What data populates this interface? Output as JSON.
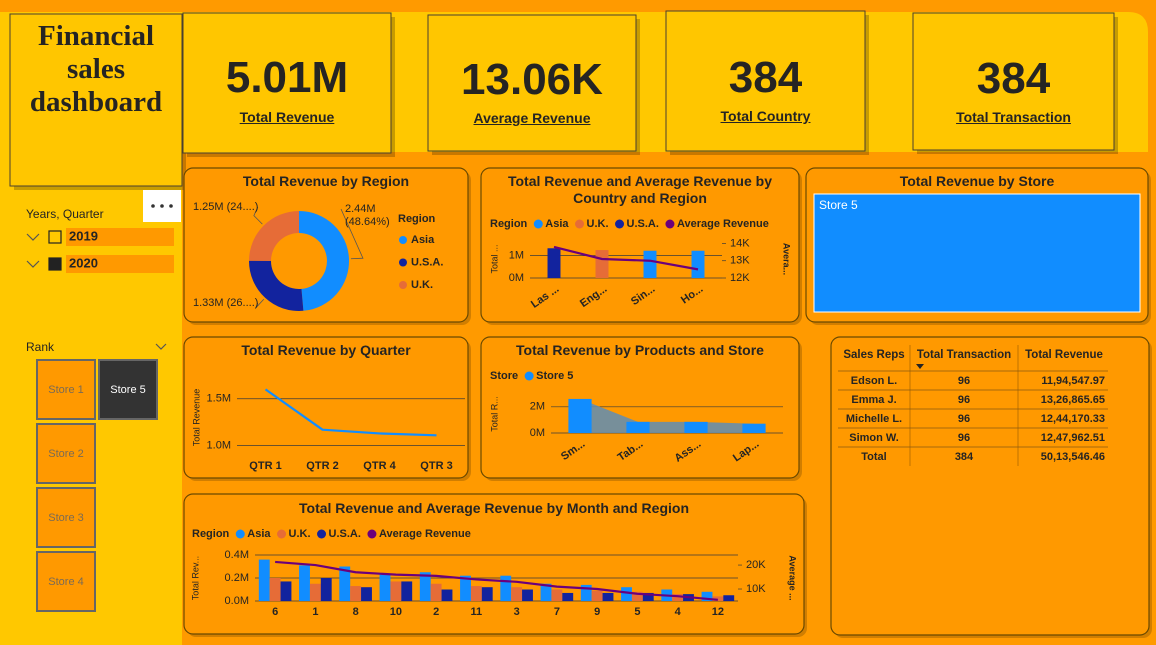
{
  "header": {
    "title": "Financial sales dashboard"
  },
  "kpis": [
    {
      "value": "5.01M",
      "label": "Total Revenue"
    },
    {
      "value": "13.06K",
      "label": "Average Revenue"
    },
    {
      "value": "384",
      "label": "Total Country"
    },
    {
      "value": "384",
      "label": "Total Transaction"
    }
  ],
  "slicers": {
    "year": {
      "title": "Years, Quarter",
      "items": [
        "2019",
        "2020"
      ],
      "checked": [
        false,
        true
      ]
    },
    "rank": {
      "title": "Rank",
      "items": [
        "Store 1",
        "Store 5",
        "Store 2",
        "Store 3",
        "Store 4"
      ],
      "selected_index": 1
    }
  },
  "chart_data": [
    {
      "type": "pie",
      "title": "Total Revenue by Region",
      "legend_title": "Region",
      "categories": [
        "Asia",
        "U.S.A.",
        "U.K."
      ],
      "values": [
        2.44,
        1.33,
        1.25
      ],
      "value_labels": [
        "2.44M (48.64%)",
        "1.33M (26....)",
        "1.25M (24....)"
      ],
      "colors": [
        "#118DFF",
        "#12239E",
        "#E66C37"
      ]
    },
    {
      "type": "combo",
      "title": "Total Revenue and Average Revenue by Country and Region",
      "legend_title": "Region",
      "categories": [
        "Las ...",
        "Eng...",
        "Sin...",
        "Ho..."
      ],
      "series": [
        {
          "name": "Asia",
          "color": "#118DFF",
          "values": [
            null,
            null,
            1.22,
            1.22
          ]
        },
        {
          "name": "U.K.",
          "color": "#E66C37",
          "values": [
            null,
            1.25,
            null,
            null
          ]
        },
        {
          "name": "U.S.A.",
          "color": "#12239E",
          "values": [
            1.33,
            null,
            null,
            null
          ]
        },
        {
          "name": "Average Revenue",
          "color": "#6B007B",
          "type": "line",
          "axis": "y2",
          "values": [
            13.8,
            13.1,
            13.0,
            12.5
          ]
        }
      ],
      "ylim": [
        0,
        1.7
      ],
      "yticks": [
        {
          "value": 0,
          "label": "0M"
        },
        {
          "value": 1,
          "label": "1M"
        }
      ],
      "y2lim": [
        12,
        14.2
      ],
      "y2ticks": [
        {
          "value": 12,
          "label": "12K"
        },
        {
          "value": 13,
          "label": "13K"
        },
        {
          "value": 14,
          "label": "14K"
        }
      ],
      "y_label": "Total ...",
      "y2_label": "Avera...",
      "grid": true
    },
    {
      "type": "treemap",
      "title": "Total Revenue by Store",
      "categories": [
        "Store 5"
      ],
      "values": [
        5.01
      ],
      "colors": [
        "#118DFF"
      ]
    },
    {
      "type": "line",
      "title": "Total Revenue by Quarter",
      "categories": [
        "QTR 1",
        "QTR 2",
        "QTR 4",
        "QTR 3"
      ],
      "values": [
        1.6,
        1.17,
        1.13,
        1.11
      ],
      "color": "#118DFF",
      "ylim": [
        0.9,
        1.7
      ],
      "yticks": [
        {
          "value": 1.0,
          "label": "1.0M"
        },
        {
          "value": 1.5,
          "label": "1.5M"
        }
      ],
      "y_label": "Total Revenue",
      "grid": true
    },
    {
      "type": "ribbon",
      "title": "Total Revenue by Products and Store",
      "legend_title": "Store",
      "categories": [
        "Sm...",
        "Tab...",
        "Ass...",
        "Lap..."
      ],
      "series": [
        {
          "name": "Store 5",
          "color": "#118DFF",
          "values": [
            2.6,
            0.85,
            0.85,
            0.71
          ]
        }
      ],
      "ribbon_color": "#5F8DB5",
      "ylim": [
        0,
        2.9
      ],
      "yticks": [
        {
          "value": 0,
          "label": "0M"
        },
        {
          "value": 2,
          "label": "2M"
        }
      ],
      "y_label": "Total R...",
      "grid": true
    },
    {
      "type": "combo",
      "title": "Total Revenue and Average Revenue by Month and Region",
      "legend_title": "Region",
      "categories": [
        "6",
        "1",
        "8",
        "10",
        "2",
        "11",
        "3",
        "7",
        "9",
        "5",
        "4",
        "12"
      ],
      "series": [
        {
          "name": "Asia",
          "color": "#118DFF",
          "values": [
            0.36,
            0.31,
            0.3,
            0.23,
            0.25,
            0.22,
            0.22,
            0.15,
            0.14,
            0.12,
            0.1,
            0.08
          ]
        },
        {
          "name": "U.K.",
          "color": "#E66C37",
          "values": [
            0.2,
            0.15,
            0.13,
            0.17,
            0.15,
            0.13,
            0.12,
            0.1,
            0.09,
            0.08,
            0.06,
            0.04
          ]
        },
        {
          "name": "U.S.A.",
          "color": "#12239E",
          "values": [
            0.17,
            0.2,
            0.12,
            0.17,
            0.1,
            0.12,
            0.1,
            0.07,
            0.07,
            0.07,
            0.06,
            0.05
          ]
        },
        {
          "name": "Average Revenue",
          "color": "#6B007B",
          "type": "line",
          "axis": "y2",
          "values": [
            21.3,
            20,
            17,
            16,
            15.5,
            14,
            13,
            11,
            10,
            8,
            7,
            5.5
          ]
        }
      ],
      "ylim": [
        0,
        0.4
      ],
      "yticks": [
        {
          "value": 0,
          "label": "0.0M"
        },
        {
          "value": 0.2,
          "label": "0.2M"
        },
        {
          "value": 0.4,
          "label": "0.4M"
        }
      ],
      "y2lim": [
        5,
        24.2
      ],
      "y2ticks": [
        {
          "value": 10,
          "label": "10K"
        },
        {
          "value": 20,
          "label": "20K"
        }
      ],
      "y_label": "Total Rev...",
      "y2_label": "Average ...",
      "grid": true
    }
  ],
  "table": {
    "columns": [
      "Sales Reps",
      "Total Transaction",
      "Total Revenue"
    ],
    "rows": [
      [
        "Edson L.",
        "96",
        "11,94,547.97"
      ],
      [
        "Emma J.",
        "96",
        "13,26,865.65"
      ],
      [
        "Michelle L.",
        "96",
        "12,44,170.33"
      ],
      [
        "Simon W.",
        "96",
        "12,47,962.51"
      ]
    ],
    "total": [
      "Total",
      "384",
      "50,13,546.46"
    ]
  }
}
